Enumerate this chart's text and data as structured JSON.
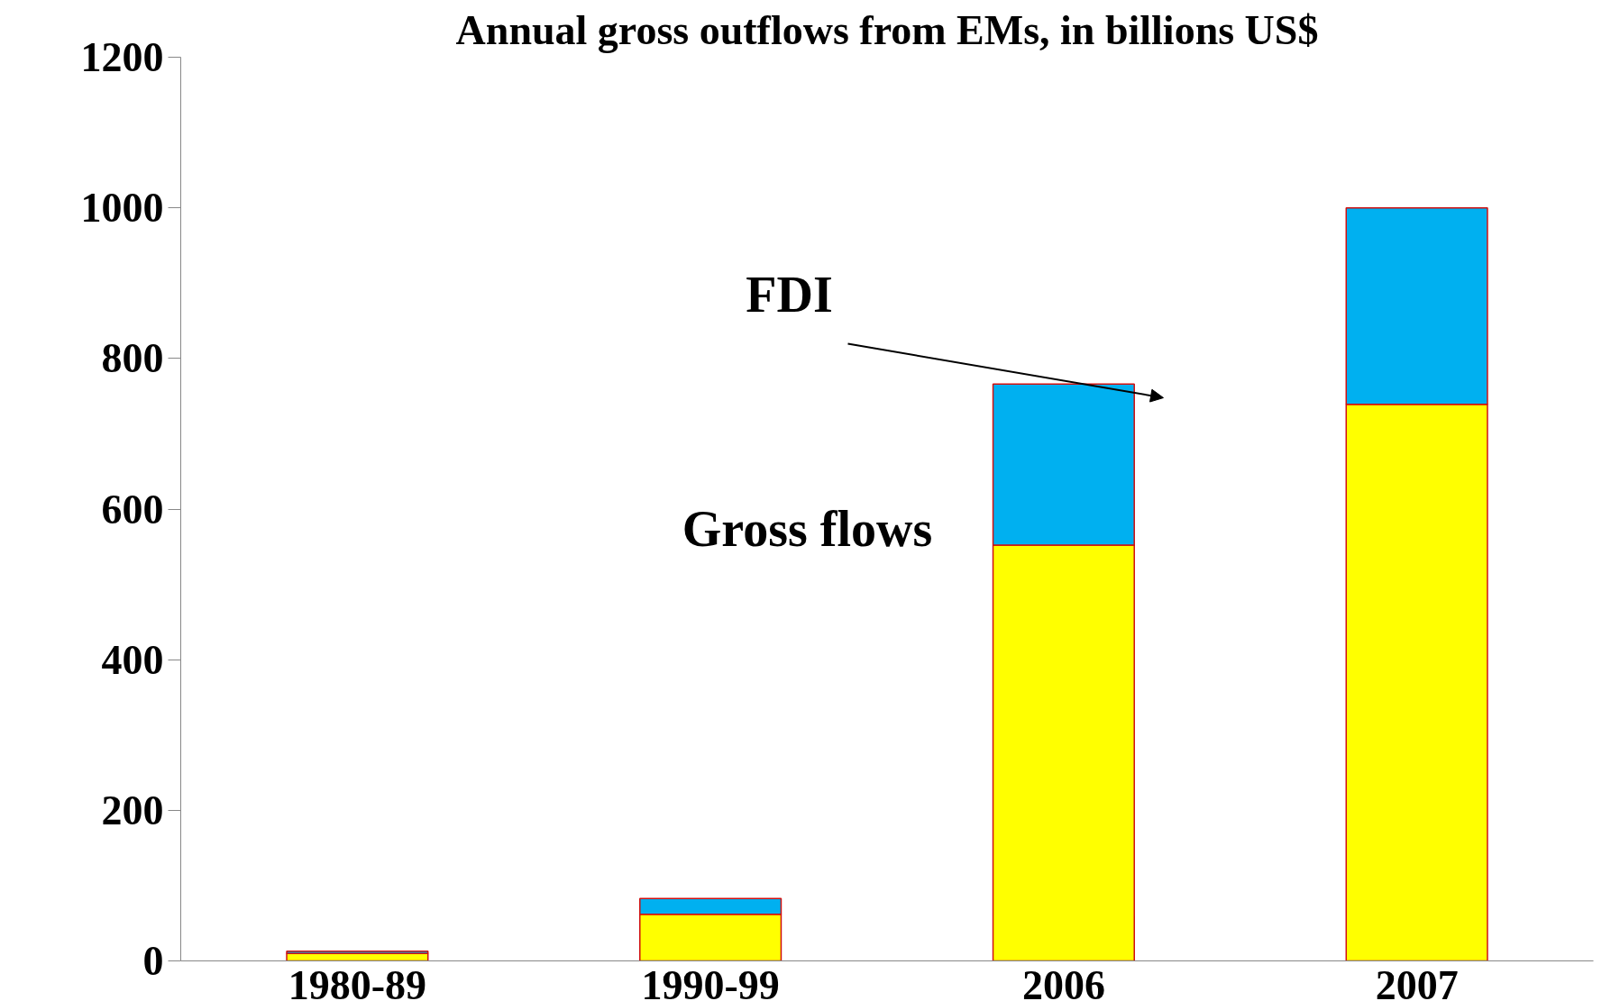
{
  "chart_data": {
    "type": "bar",
    "title": "Annual gross outflows from EMs, in billions US$",
    "categories": [
      "1980-89",
      "1990-99",
      "2006",
      "2007"
    ],
    "stacked": true,
    "series": [
      {
        "color": "#ffff00",
        "values": [
          10,
          62,
          552,
          739
        ]
      },
      {
        "color": "#00b0f0",
        "values": [
          3,
          21,
          214,
          261
        ]
      }
    ],
    "ylim": [
      0,
      1200
    ],
    "yticks": [
      0,
      200,
      400,
      600,
      800,
      1000,
      1200
    ],
    "grid": false,
    "annotations": [
      "FDI",
      "Gross flows"
    ]
  }
}
